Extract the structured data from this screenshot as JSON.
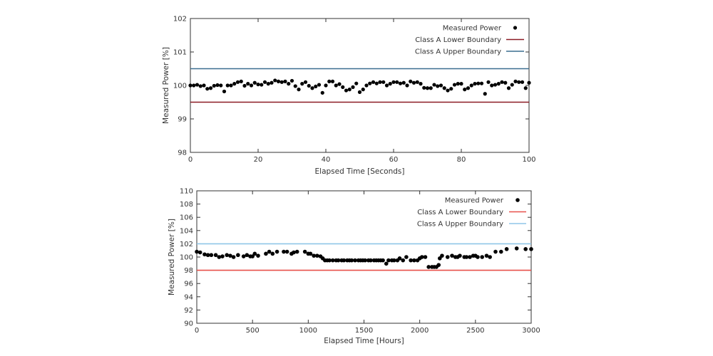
{
  "chart_data": [
    {
      "type": "scatter",
      "title": "",
      "xlabel": "Elapsed Time [Seconds]",
      "ylabel": "Measured Power [%]",
      "xlim": [
        0,
        100
      ],
      "ylim": [
        98,
        102
      ],
      "xticks": [
        0,
        20,
        40,
        60,
        80,
        100
      ],
      "yticks": [
        98,
        99,
        100,
        101,
        102
      ],
      "grid": false,
      "legend_position": "top-right",
      "series": [
        {
          "name": "Measured Power",
          "kind": "points",
          "color": "#000000",
          "x": [
            0,
            1,
            2,
            3,
            4,
            5,
            6,
            7,
            8,
            9,
            10,
            11,
            12,
            13,
            14,
            15,
            16,
            17,
            18,
            19,
            20,
            21,
            22,
            23,
            24,
            25,
            26,
            27,
            28,
            29,
            30,
            31,
            32,
            33,
            34,
            35,
            36,
            37,
            38,
            39,
            40,
            41,
            42,
            43,
            44,
            45,
            46,
            47,
            48,
            49,
            50,
            51,
            52,
            53,
            54,
            55,
            56,
            57,
            58,
            59,
            60,
            61,
            62,
            63,
            64,
            65,
            66,
            67,
            68,
            69,
            70,
            71,
            72,
            73,
            74,
            75,
            76,
            77,
            78,
            79,
            80,
            81,
            82,
            83,
            84,
            85,
            86,
            87,
            88,
            89,
            90,
            91,
            92,
            93,
            94,
            95,
            96,
            97,
            98,
            99,
            100
          ],
          "y": [
            100.0,
            100.0,
            100.02,
            99.98,
            100.0,
            99.9,
            99.92,
            99.99,
            100.01,
            100.0,
            99.82,
            100.0,
            100.0,
            100.05,
            100.1,
            100.12,
            99.99,
            100.05,
            100.0,
            100.08,
            100.03,
            100.02,
            100.1,
            100.05,
            100.08,
            100.15,
            100.12,
            100.1,
            100.12,
            100.05,
            100.14,
            99.98,
            99.88,
            100.05,
            100.1,
            99.99,
            99.92,
            99.97,
            100.02,
            99.78,
            100.0,
            100.12,
            100.12,
            100.0,
            100.04,
            99.95,
            99.85,
            99.88,
            99.95,
            100.06,
            99.8,
            99.88,
            100.0,
            100.06,
            100.1,
            100.06,
            100.1,
            100.1,
            100.0,
            100.05,
            100.1,
            100.1,
            100.06,
            100.08,
            100.0,
            100.12,
            100.08,
            100.1,
            100.05,
            99.93,
            99.92,
            99.92,
            100.02,
            99.98,
            100.0,
            99.92,
            99.85,
            99.9,
            100.02,
            100.05,
            100.05,
            99.88,
            99.92,
            100.0,
            100.05,
            100.06,
            100.06,
            99.75,
            100.1,
            100.0,
            100.02,
            100.05,
            100.1,
            100.08,
            99.92,
            100.02,
            100.12,
            100.1,
            100.1,
            99.92,
            100.08
          ]
        },
        {
          "name": "Class A Lower Boundary",
          "kind": "hline",
          "value": 99.5,
          "color": "#8b1a24"
        },
        {
          "name": "Class A Upper Boundary",
          "kind": "hline",
          "value": 100.5,
          "color": "#3a6e8f"
        }
      ]
    },
    {
      "type": "scatter",
      "title": "",
      "xlabel": "Elapsed Time [Hours]",
      "ylabel": "Measured Power [%]",
      "xlim": [
        0,
        3000
      ],
      "ylim": [
        90,
        110
      ],
      "xticks": [
        0,
        500,
        1000,
        1500,
        2000,
        2500,
        3000
      ],
      "yticks": [
        90,
        92,
        94,
        96,
        98,
        100,
        102,
        104,
        106,
        108,
        110
      ],
      "grid": false,
      "legend_position": "top-right",
      "series": [
        {
          "name": "Measured Power",
          "kind": "points",
          "color": "#000000",
          "x": [
            0,
            30,
            70,
            100,
            130,
            170,
            200,
            230,
            270,
            300,
            330,
            370,
            420,
            450,
            480,
            500,
            520,
            550,
            620,
            650,
            680,
            720,
            780,
            810,
            850,
            870,
            900,
            970,
            1000,
            1020,
            1050,
            1080,
            1110,
            1130,
            1150,
            1170,
            1190,
            1220,
            1250,
            1270,
            1300,
            1320,
            1350,
            1370,
            1390,
            1420,
            1450,
            1470,
            1490,
            1510,
            1540,
            1560,
            1590,
            1610,
            1630,
            1650,
            1670,
            1700,
            1720,
            1750,
            1770,
            1800,
            1820,
            1850,
            1880,
            1920,
            1950,
            1980,
            2000,
            2020,
            2050,
            2080,
            2110,
            2130,
            2150,
            2170,
            2180,
            2200,
            2250,
            2290,
            2320,
            2340,
            2360,
            2400,
            2420,
            2450,
            2480,
            2500,
            2520,
            2560,
            2600,
            2630,
            2680,
            2730,
            2780,
            2870,
            2950,
            3000
          ],
          "y": [
            100.8,
            100.7,
            100.4,
            100.3,
            100.3,
            100.3,
            100.0,
            100.1,
            100.3,
            100.2,
            100.0,
            100.3,
            100.1,
            100.3,
            100.1,
            100.1,
            100.5,
            100.2,
            100.5,
            100.8,
            100.5,
            100.8,
            100.8,
            100.8,
            100.5,
            100.7,
            100.8,
            100.8,
            100.5,
            100.5,
            100.2,
            100.2,
            100.1,
            99.8,
            99.5,
            99.5,
            99.5,
            99.5,
            99.5,
            99.5,
            99.5,
            99.5,
            99.5,
            99.5,
            99.5,
            99.5,
            99.5,
            99.5,
            99.5,
            99.5,
            99.5,
            99.5,
            99.5,
            99.5,
            99.5,
            99.5,
            99.5,
            99.0,
            99.5,
            99.5,
            99.5,
            99.5,
            99.8,
            99.5,
            100.0,
            99.5,
            99.5,
            99.5,
            99.8,
            100.0,
            100.0,
            98.5,
            98.5,
            98.5,
            98.5,
            98.8,
            99.8,
            100.2,
            100.0,
            100.2,
            100.0,
            100.0,
            100.2,
            100.0,
            100.0,
            100.0,
            100.2,
            100.2,
            100.0,
            100.0,
            100.2,
            100.0,
            100.8,
            100.8,
            101.2,
            101.3,
            101.2,
            101.2
          ]
        },
        {
          "name": "Class A Lower Boundary",
          "kind": "hline",
          "value": 98.0,
          "color": "#e8504a"
        },
        {
          "name": "Class A Upper Boundary",
          "kind": "hline",
          "value": 102.0,
          "color": "#8fc6e8"
        }
      ]
    }
  ]
}
